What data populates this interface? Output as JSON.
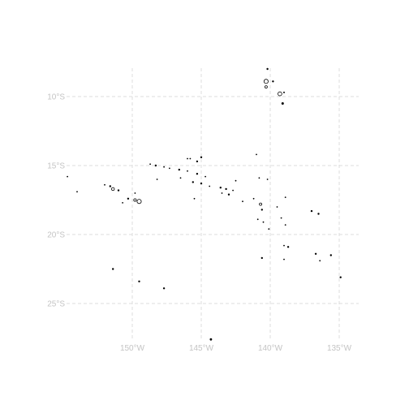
{
  "map": {
    "type": "map",
    "extent": {
      "lon_min": -155.5,
      "lon_max": -134.5,
      "lat_min": -28.2,
      "lat_max": -7.0
    },
    "graticule": {
      "style": "dashed",
      "color": "#dcdcdc"
    },
    "x_ticks": [
      {
        "value": -150,
        "label": "150°W"
      },
      {
        "value": -145,
        "label": "145°W"
      },
      {
        "value": -140,
        "label": "140°W"
      },
      {
        "value": -135,
        "label": "135°W"
      }
    ],
    "y_ticks": [
      {
        "value": -10,
        "label": "10°S"
      },
      {
        "value": -15,
        "label": "15°S"
      },
      {
        "value": -20,
        "label": "20°S"
      },
      {
        "value": -25,
        "label": "25°S"
      }
    ],
    "label_color": "#c4c4c4",
    "land_color": "#000000",
    "islands": [
      {
        "lon": -140.2,
        "lat": -8.0,
        "size": 1.2,
        "outline": false
      },
      {
        "lon": -140.3,
        "lat": -8.9,
        "size": 2.6,
        "outline": true
      },
      {
        "lon": -139.8,
        "lat": -8.9,
        "size": 1.2,
        "outline": false
      },
      {
        "lon": -140.3,
        "lat": -9.3,
        "size": 1.5,
        "outline": true
      },
      {
        "lon": -139.3,
        "lat": -9.8,
        "size": 2.4,
        "outline": true
      },
      {
        "lon": -139.0,
        "lat": -9.7,
        "size": 1.0,
        "outline": false
      },
      {
        "lon": -139.1,
        "lat": -10.5,
        "size": 1.5,
        "outline": false
      },
      {
        "lon": -141.0,
        "lat": -14.2,
        "size": 0.9,
        "outline": false
      },
      {
        "lon": -145.0,
        "lat": -14.4,
        "size": 1.2,
        "outline": false
      },
      {
        "lon": -145.8,
        "lat": -14.5,
        "size": 0.9,
        "outline": false
      },
      {
        "lon": -146.0,
        "lat": -14.5,
        "size": 0.9,
        "outline": false
      },
      {
        "lon": -145.3,
        "lat": -14.7,
        "size": 1.2,
        "outline": false
      },
      {
        "lon": -148.7,
        "lat": -14.9,
        "size": 0.9,
        "outline": false
      },
      {
        "lon": -148.3,
        "lat": -15.0,
        "size": 1.2,
        "outline": false
      },
      {
        "lon": -147.7,
        "lat": -15.1,
        "size": 0.9,
        "outline": false
      },
      {
        "lon": -147.3,
        "lat": -15.2,
        "size": 0.9,
        "outline": false
      },
      {
        "lon": -146.6,
        "lat": -15.3,
        "size": 1.2,
        "outline": false
      },
      {
        "lon": -146.0,
        "lat": -15.4,
        "size": 0.9,
        "outline": false
      },
      {
        "lon": -145.3,
        "lat": -15.6,
        "size": 1.2,
        "outline": false
      },
      {
        "lon": -144.7,
        "lat": -15.8,
        "size": 0.9,
        "outline": false
      },
      {
        "lon": -146.5,
        "lat": -15.9,
        "size": 0.9,
        "outline": false
      },
      {
        "lon": -148.2,
        "lat": -16.0,
        "size": 0.9,
        "outline": false
      },
      {
        "lon": -145.6,
        "lat": -16.2,
        "size": 1.2,
        "outline": false
      },
      {
        "lon": -145.0,
        "lat": -16.3,
        "size": 1.2,
        "outline": false
      },
      {
        "lon": -144.4,
        "lat": -16.5,
        "size": 0.9,
        "outline": false
      },
      {
        "lon": -143.6,
        "lat": -16.6,
        "size": 1.2,
        "outline": false
      },
      {
        "lon": -143.2,
        "lat": -16.7,
        "size": 1.2,
        "outline": false
      },
      {
        "lon": -142.7,
        "lat": -16.8,
        "size": 0.9,
        "outline": false
      },
      {
        "lon": -142.5,
        "lat": -16.1,
        "size": 0.9,
        "outline": false
      },
      {
        "lon": -143.0,
        "lat": -17.1,
        "size": 1.2,
        "outline": false
      },
      {
        "lon": -143.5,
        "lat": -17.0,
        "size": 0.9,
        "outline": false
      },
      {
        "lon": -142.0,
        "lat": -17.6,
        "size": 0.9,
        "outline": false
      },
      {
        "lon": -140.8,
        "lat": -15.9,
        "size": 0.9,
        "outline": false
      },
      {
        "lon": -140.2,
        "lat": -16.0,
        "size": 0.9,
        "outline": false
      },
      {
        "lon": -145.5,
        "lat": -17.4,
        "size": 0.9,
        "outline": false
      },
      {
        "lon": -141.2,
        "lat": -17.4,
        "size": 0.9,
        "outline": false
      },
      {
        "lon": -140.7,
        "lat": -17.8,
        "size": 1.5,
        "outline": true
      },
      {
        "lon": -140.6,
        "lat": -18.2,
        "size": 1.2,
        "outline": false
      },
      {
        "lon": -139.5,
        "lat": -18.0,
        "size": 0.9,
        "outline": false
      },
      {
        "lon": -138.9,
        "lat": -17.3,
        "size": 0.9,
        "outline": false
      },
      {
        "lon": -140.9,
        "lat": -18.9,
        "size": 0.9,
        "outline": false
      },
      {
        "lon": -140.5,
        "lat": -19.1,
        "size": 0.9,
        "outline": false
      },
      {
        "lon": -140.1,
        "lat": -19.6,
        "size": 0.9,
        "outline": false
      },
      {
        "lon": -139.2,
        "lat": -18.8,
        "size": 0.9,
        "outline": false
      },
      {
        "lon": -138.9,
        "lat": -19.3,
        "size": 0.9,
        "outline": false
      },
      {
        "lon": -137.0,
        "lat": -18.3,
        "size": 1.2,
        "outline": false
      },
      {
        "lon": -136.5,
        "lat": -18.5,
        "size": 1.2,
        "outline": false
      },
      {
        "lon": -139.0,
        "lat": -20.8,
        "size": 0.9,
        "outline": false
      },
      {
        "lon": -138.7,
        "lat": -20.9,
        "size": 1.2,
        "outline": false
      },
      {
        "lon": -139.0,
        "lat": -21.8,
        "size": 0.9,
        "outline": false
      },
      {
        "lon": -140.6,
        "lat": -21.7,
        "size": 1.2,
        "outline": false
      },
      {
        "lon": -136.7,
        "lat": -21.4,
        "size": 1.2,
        "outline": false
      },
      {
        "lon": -136.4,
        "lat": -21.9,
        "size": 0.9,
        "outline": false
      },
      {
        "lon": -135.6,
        "lat": -21.5,
        "size": 1.2,
        "outline": false
      },
      {
        "lon": -134.9,
        "lat": -23.1,
        "size": 1.2,
        "outline": false
      },
      {
        "lon": -149.5,
        "lat": -17.6,
        "size": 2.6,
        "outline": true
      },
      {
        "lon": -149.8,
        "lat": -17.5,
        "size": 1.6,
        "outline": true
      },
      {
        "lon": -150.3,
        "lat": -17.4,
        "size": 1.2,
        "outline": false
      },
      {
        "lon": -151.4,
        "lat": -16.7,
        "size": 1.8,
        "outline": true
      },
      {
        "lon": -151.6,
        "lat": -16.5,
        "size": 1.2,
        "outline": false
      },
      {
        "lon": -151.0,
        "lat": -16.8,
        "size": 1.2,
        "outline": false
      },
      {
        "lon": -152.0,
        "lat": -16.4,
        "size": 0.9,
        "outline": false
      },
      {
        "lon": -150.7,
        "lat": -17.7,
        "size": 0.9,
        "outline": false
      },
      {
        "lon": -149.8,
        "lat": -17.0,
        "size": 0.9,
        "outline": false
      },
      {
        "lon": -154.7,
        "lat": -15.8,
        "size": 0.9,
        "outline": false
      },
      {
        "lon": -154.0,
        "lat": -16.9,
        "size": 0.9,
        "outline": false
      },
      {
        "lon": -151.4,
        "lat": -22.5,
        "size": 1.2,
        "outline": false
      },
      {
        "lon": -149.5,
        "lat": -23.4,
        "size": 1.2,
        "outline": false
      },
      {
        "lon": -147.7,
        "lat": -23.9,
        "size": 1.2,
        "outline": false
      },
      {
        "lon": -144.3,
        "lat": -27.6,
        "size": 1.4,
        "outline": false
      }
    ]
  }
}
